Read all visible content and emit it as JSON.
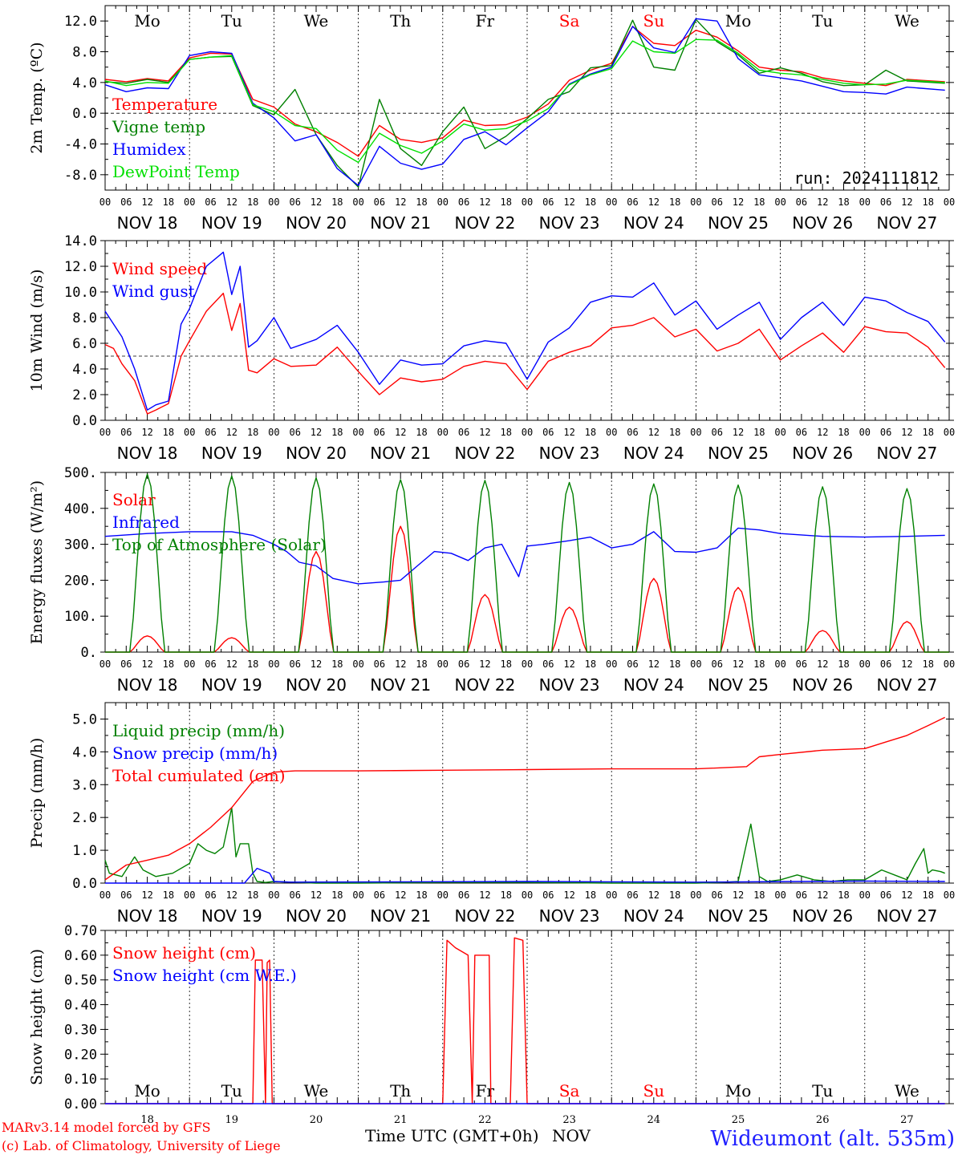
{
  "run_label": "run: 2024111812",
  "days": [
    "Mo",
    "Tu",
    "We",
    "Th",
    "Fr",
    "Sa",
    "Su",
    "Mo",
    "Tu",
    "We"
  ],
  "weekend_days": [
    5,
    6
  ],
  "day_colors": {
    "weekday": "#000000",
    "weekend": "#ff0000"
  },
  "date_labels": [
    "NOV 18",
    "NOV 19",
    "NOV 20",
    "NOV 21",
    "NOV 22",
    "NOV 23",
    "NOV 24",
    "NOV 25",
    "NOV 26",
    "NOV 27"
  ],
  "hour_ticks": [
    "00",
    "06",
    "12",
    "18"
  ],
  "bottom_day_numbers": [
    "18",
    "19",
    "20",
    "21",
    "22",
    "23",
    "24",
    "25",
    "26",
    "27"
  ],
  "x_axis_title": "Time UTC (GMT+0h)",
  "x_axis_month": "NOV",
  "credit_line1": "MARv3.14 model forced by GFS",
  "credit_line2": "(c) Lab. of Climatology, University of Liege",
  "station": "Wideumont (alt. 535m)",
  "colors": {
    "red": "#ff0000",
    "green": "#008000",
    "blue": "#0000ff",
    "lime": "#00e000",
    "station": "#2020ff"
  },
  "chart_data": [
    {
      "type": "line",
      "ylabel": "2m Temp. (ºC)",
      "ylim": [
        -10,
        14
      ],
      "yticks": [
        -8,
        -4,
        0,
        4,
        8,
        12
      ],
      "ytick_labels": [
        "-8.0",
        "-4.0",
        "0.0",
        "4.0",
        "8.0",
        "12.0"
      ],
      "ref_line": 0,
      "x_unit": "days since NOV 18 00 UTC",
      "series": [
        {
          "name": "Temperature",
          "color": "#ff0000",
          "x": [
            0,
            0.25,
            0.5,
            0.75,
            1,
            1.25,
            1.5,
            1.75,
            2,
            2.25,
            2.5,
            2.75,
            3,
            3.25,
            3.5,
            3.75,
            4,
            4.25,
            4.5,
            4.75,
            5,
            5.25,
            5.5,
            5.75,
            6,
            6.25,
            6.5,
            6.75,
            7,
            7.25,
            7.5,
            7.75,
            8,
            8.25,
            8.5,
            8.75,
            9,
            9.25,
            9.5,
            9.95
          ],
          "y": [
            4.4,
            4.1,
            4.5,
            4.2,
            7.2,
            7.8,
            7.7,
            1.8,
            0.8,
            -1.4,
            -2.4,
            -3.8,
            -5.6,
            -1.6,
            -3.4,
            -3.8,
            -3.2,
            -0.9,
            -1.6,
            -1.5,
            -0.5,
            1.2,
            4.3,
            5.6,
            6.5,
            11.3,
            9.1,
            8.8,
            10.8,
            9.9,
            8.1,
            6.0,
            5.6,
            5.4,
            4.6,
            4.2,
            3.9,
            3.6,
            4.4,
            4.1
          ]
        },
        {
          "name": "Vigne temp",
          "color": "#008000",
          "x": [
            0,
            0.25,
            0.5,
            0.75,
            1,
            1.25,
            1.5,
            1.75,
            2,
            2.25,
            2.5,
            2.75,
            3,
            3.25,
            3.5,
            3.75,
            4,
            4.25,
            4.5,
            4.75,
            5,
            5.25,
            5.5,
            5.75,
            6,
            6.25,
            6.5,
            6.75,
            7,
            7.25,
            7.5,
            7.75,
            8,
            8.25,
            8.5,
            8.75,
            9,
            9.25,
            9.5,
            9.95
          ],
          "y": [
            4.1,
            3.9,
            4.4,
            4.0,
            7.0,
            7.3,
            7.4,
            1.0,
            -0.2,
            3.1,
            -2.8,
            -6.8,
            -9.6,
            1.8,
            -4.6,
            -6.8,
            -2.4,
            0.8,
            -4.6,
            -3.0,
            -0.7,
            1.8,
            2.8,
            5.9,
            6.2,
            12.1,
            6.0,
            5.6,
            12.2,
            9.3,
            7.6,
            5.2,
            5.9,
            5.2,
            4.1,
            3.6,
            3.7,
            5.6,
            4.2,
            3.9
          ]
        },
        {
          "name": "Humidex",
          "color": "#0000ff",
          "x": [
            0,
            0.25,
            0.5,
            0.75,
            1,
            1.25,
            1.5,
            1.75,
            2,
            2.25,
            2.5,
            2.75,
            3,
            3.25,
            3.5,
            3.75,
            4,
            4.25,
            4.5,
            4.75,
            5,
            5.25,
            5.5,
            5.75,
            6,
            6.25,
            6.5,
            6.75,
            7,
            7.25,
            7.5,
            7.75,
            8,
            8.25,
            8.5,
            8.75,
            9,
            9.25,
            9.5,
            9.95
          ],
          "y": [
            3.7,
            2.8,
            3.3,
            3.2,
            7.5,
            8.0,
            7.8,
            1.3,
            -0.6,
            -3.6,
            -2.8,
            -7.2,
            -9.4,
            -4.3,
            -6.5,
            -7.3,
            -6.6,
            -3.4,
            -2.4,
            -4.1,
            -1.9,
            0.2,
            3.8,
            5.1,
            6.0,
            11.3,
            8.5,
            7.9,
            12.3,
            12.0,
            7.1,
            5.0,
            4.6,
            4.2,
            3.5,
            2.8,
            2.7,
            2.5,
            3.4,
            3.0
          ]
        },
        {
          "name": "DewPoint Temp",
          "color": "#00e000",
          "x": [
            0,
            0.25,
            0.5,
            0.75,
            1,
            1.25,
            1.5,
            1.75,
            2,
            2.25,
            2.5,
            2.75,
            3,
            3.25,
            3.5,
            3.75,
            4,
            4.25,
            4.5,
            4.75,
            5,
            5.25,
            5.5,
            5.75,
            6,
            6.25,
            6.5,
            6.75,
            7,
            7.25,
            7.5,
            7.75,
            8,
            8.25,
            8.5,
            8.75,
            9,
            9.25,
            9.5,
            9.95
          ],
          "y": [
            4.2,
            3.6,
            4.0,
            3.9,
            7.0,
            7.3,
            7.5,
            1.1,
            0.2,
            -1.6,
            -2.0,
            -4.8,
            -6.4,
            -2.6,
            -4.2,
            -5.2,
            -3.6,
            -1.4,
            -2.2,
            -2.0,
            -1.0,
            0.6,
            3.7,
            5.0,
            5.8,
            9.4,
            8.0,
            7.8,
            9.6,
            9.5,
            7.8,
            5.6,
            5.2,
            5.0,
            4.4,
            3.9,
            3.7,
            3.8,
            4.3,
            4.0
          ]
        }
      ]
    },
    {
      "type": "line",
      "ylabel": "10m Wind (m/s)",
      "ylim": [
        0,
        14
      ],
      "yticks": [
        0,
        2,
        4,
        6,
        8,
        10,
        12,
        14
      ],
      "ytick_labels": [
        "0.0",
        "2.0",
        "4.0",
        "6.0",
        "8.0",
        "10.0",
        "12.0",
        "14.0"
      ],
      "ref_line": 5,
      "x_unit": "days since NOV 18 00 UTC",
      "series": [
        {
          "name": "Wind speed",
          "color": "#ff0000",
          "x": [
            0,
            0.1,
            0.2,
            0.35,
            0.5,
            0.6,
            0.75,
            0.9,
            1.0,
            1.2,
            1.4,
            1.5,
            1.6,
            1.7,
            1.8,
            2.0,
            2.2,
            2.5,
            2.75,
            3.0,
            3.25,
            3.5,
            3.75,
            4.0,
            4.25,
            4.5,
            4.75,
            5.0,
            5.25,
            5.5,
            5.75,
            6.0,
            6.25,
            6.5,
            6.75,
            7.0,
            7.25,
            7.5,
            7.75,
            8.0,
            8.25,
            8.5,
            8.75,
            9.0,
            9.25,
            9.5,
            9.75,
            9.95
          ],
          "y": [
            5.9,
            5.6,
            4.4,
            3.1,
            0.5,
            0.8,
            1.3,
            5.0,
            6.2,
            8.5,
            9.9,
            7.0,
            9.1,
            3.9,
            3.7,
            4.8,
            4.2,
            4.3,
            5.7,
            3.8,
            2.0,
            3.3,
            3.0,
            3.2,
            4.2,
            4.6,
            4.4,
            2.4,
            4.6,
            5.3,
            5.8,
            7.2,
            7.4,
            8.0,
            6.5,
            7.1,
            5.4,
            6.0,
            7.1,
            4.7,
            5.8,
            6.8,
            5.3,
            7.3,
            6.9,
            6.8,
            5.7,
            4.1
          ]
        },
        {
          "name": "Wind gust",
          "color": "#0000ff",
          "x": [
            0,
            0.1,
            0.2,
            0.35,
            0.5,
            0.6,
            0.75,
            0.9,
            1.0,
            1.2,
            1.4,
            1.5,
            1.6,
            1.7,
            1.8,
            2.0,
            2.2,
            2.5,
            2.75,
            3.0,
            3.25,
            3.5,
            3.75,
            4.0,
            4.25,
            4.5,
            4.75,
            5.0,
            5.25,
            5.5,
            5.75,
            6.0,
            6.25,
            6.5,
            6.75,
            7.0,
            7.25,
            7.5,
            7.75,
            8.0,
            8.25,
            8.5,
            8.75,
            9.0,
            9.25,
            9.5,
            9.75,
            9.95
          ],
          "y": [
            8.5,
            7.5,
            6.5,
            4.0,
            0.8,
            1.2,
            1.5,
            7.5,
            8.7,
            12.0,
            13.1,
            9.8,
            12.0,
            5.7,
            6.2,
            8.0,
            5.6,
            6.3,
            7.4,
            5.3,
            2.8,
            4.7,
            4.3,
            4.4,
            5.8,
            6.2,
            6.0,
            3.2,
            6.1,
            7.2,
            9.2,
            9.7,
            9.6,
            10.7,
            8.2,
            9.3,
            7.1,
            8.2,
            9.2,
            6.3,
            8.0,
            9.2,
            7.4,
            9.6,
            9.3,
            8.4,
            7.7,
            6.1
          ]
        }
      ]
    },
    {
      "type": "line",
      "ylabel": "Energy fluxes (W/m²)",
      "ylim": [
        0,
        500
      ],
      "yticks": [
        0,
        100,
        200,
        300,
        400,
        500
      ],
      "ytick_labels": [
        "0.",
        "100.",
        "200.",
        "300.",
        "400.",
        "500."
      ],
      "x_unit": "days since NOV 18 00 UTC",
      "series": [
        {
          "name": "Solar",
          "color": "#ff0000",
          "peaks": [
            45,
            40,
            280,
            350,
            160,
            125,
            205,
            180,
            60,
            85
          ]
        },
        {
          "name": "Infrared",
          "color": "#0000ff",
          "x": [
            0,
            0.5,
            1.0,
            1.5,
            1.75,
            2.0,
            2.15,
            2.3,
            2.5,
            2.7,
            3.0,
            3.3,
            3.5,
            3.7,
            3.9,
            4.1,
            4.3,
            4.5,
            4.7,
            4.9,
            5.0,
            5.2,
            5.5,
            5.75,
            6.0,
            6.25,
            6.5,
            6.75,
            7.0,
            7.25,
            7.5,
            7.75,
            8.0,
            8.5,
            9.0,
            9.5,
            9.95
          ],
          "y": [
            322,
            330,
            335,
            335,
            325,
            300,
            280,
            250,
            240,
            205,
            190,
            195,
            200,
            240,
            280,
            275,
            255,
            290,
            300,
            210,
            295,
            300,
            310,
            320,
            290,
            300,
            335,
            280,
            278,
            290,
            345,
            340,
            330,
            322,
            320,
            322,
            325
          ]
        },
        {
          "name": "Top of Atmosphere (Solar)",
          "color": "#008000",
          "peaks": [
            495,
            490,
            485,
            480,
            478,
            472,
            468,
            465,
            460,
            455
          ]
        }
      ]
    },
    {
      "type": "line",
      "ylabel": "Precip (mm/h)",
      "ylim": [
        0,
        5.5
      ],
      "yticks": [
        0,
        1,
        2,
        3,
        4,
        5
      ],
      "ytick_labels": [
        "0.0",
        "1.0",
        "2.0",
        "3.0",
        "4.0",
        "5.0"
      ],
      "x_unit": "days since NOV 18 00 UTC",
      "series": [
        {
          "name": "Liquid precip (mm/h)",
          "color": "#008000",
          "x": [
            0,
            0.05,
            0.2,
            0.35,
            0.45,
            0.6,
            0.8,
            1.0,
            1.05,
            1.1,
            1.2,
            1.3,
            1.4,
            1.5,
            1.55,
            1.6,
            1.7,
            1.75,
            1.8,
            1.9,
            2.0,
            2.5,
            3.0,
            4.0,
            5.0,
            6.0,
            7.0,
            7.3,
            7.5,
            7.65,
            7.75,
            7.85,
            8.0,
            8.2,
            8.4,
            8.6,
            8.8,
            9.0,
            9.2,
            9.4,
            9.5,
            9.6,
            9.7,
            9.75,
            9.8,
            9.9,
            9.95
          ],
          "y": [
            0.7,
            0.3,
            0.2,
            0.8,
            0.4,
            0.2,
            0.3,
            0.6,
            0.9,
            1.2,
            1.0,
            0.9,
            1.1,
            2.3,
            0.8,
            1.2,
            1.2,
            0.3,
            0.05,
            0.02,
            0.05,
            0.0,
            0.0,
            0.02,
            0.02,
            0.0,
            0.0,
            0.02,
            0.05,
            1.8,
            0.2,
            0.05,
            0.1,
            0.25,
            0.1,
            0.05,
            0.1,
            0.1,
            0.4,
            0.2,
            0.1,
            0.6,
            1.05,
            0.3,
            0.4,
            0.35,
            0.3
          ]
        },
        {
          "name": "Snow precip (mm/h)",
          "color": "#0000ff",
          "x": [
            0,
            1.5,
            1.65,
            1.8,
            1.95,
            2.0,
            2.2,
            5.0,
            7.0,
            9.0,
            9.95
          ],
          "y": [
            0.0,
            0.0,
            0.0,
            0.45,
            0.3,
            0.05,
            0.03,
            0.05,
            0.03,
            0.06,
            0.05
          ]
        },
        {
          "name": "Total cumulated (cm)",
          "color": "#ff0000",
          "x": [
            0,
            0.25,
            0.5,
            0.75,
            1.0,
            1.25,
            1.5,
            1.75,
            2.0,
            2.25,
            2.5,
            3.0,
            4.0,
            5.0,
            6.0,
            7.0,
            7.6,
            7.75,
            8.0,
            8.5,
            9.0,
            9.25,
            9.5,
            9.75,
            9.95
          ],
          "y": [
            0.1,
            0.55,
            0.7,
            0.85,
            1.2,
            1.7,
            2.3,
            3.1,
            3.38,
            3.42,
            3.42,
            3.42,
            3.44,
            3.46,
            3.48,
            3.48,
            3.55,
            3.85,
            3.92,
            4.05,
            4.1,
            4.3,
            4.5,
            4.8,
            5.05
          ]
        }
      ]
    },
    {
      "type": "line",
      "ylabel": "Snow height (cm)",
      "ylim": [
        0,
        0.7
      ],
      "yticks": [
        0,
        0.1,
        0.2,
        0.3,
        0.4,
        0.5,
        0.6,
        0.7
      ],
      "ytick_labels": [
        "0.00",
        "0.10",
        "0.20",
        "0.30",
        "0.40",
        "0.50",
        "0.60",
        "0.70"
      ],
      "x_unit": "days since NOV 18 00 UTC",
      "series": [
        {
          "name": "Snow height (cm)",
          "color": "#ff0000",
          "x": [
            0,
            1.75,
            1.78,
            1.86,
            1.9,
            1.92,
            1.95,
            1.98,
            4.0,
            4.05,
            4.15,
            4.3,
            4.35,
            4.38,
            4.42,
            4.55,
            4.57,
            4.6,
            4.8,
            4.85,
            4.95,
            5.0,
            5.05,
            9.95
          ],
          "y": [
            0,
            0,
            0.58,
            0.58,
            0,
            0.57,
            0.58,
            0,
            0,
            0.66,
            0.63,
            0.6,
            0,
            0.6,
            0.6,
            0.6,
            0,
            0,
            0,
            0.67,
            0.66,
            0,
            0,
            0
          ]
        },
        {
          "name": "Snow height (cm W.E.)",
          "color": "#0000ff",
          "x": [
            0,
            9.95
          ],
          "y": [
            0,
            0
          ]
        }
      ]
    }
  ]
}
